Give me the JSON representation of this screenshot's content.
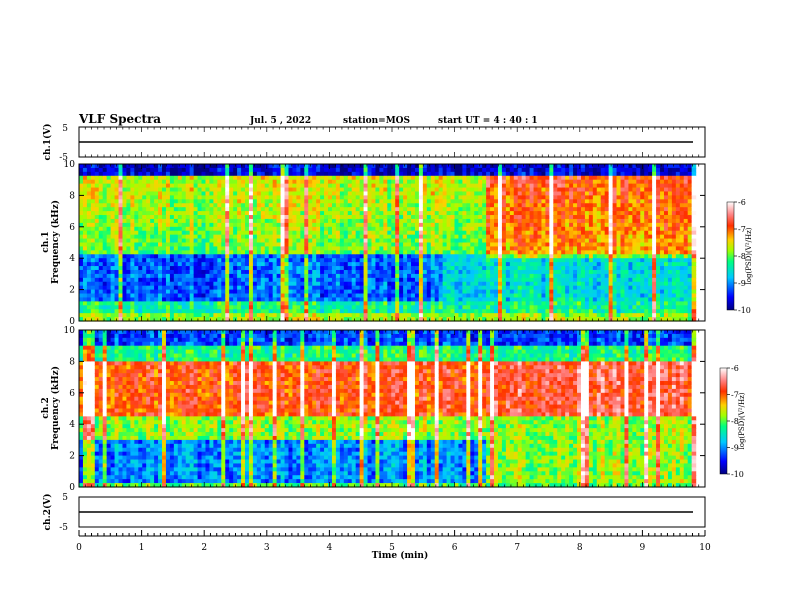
{
  "header": {
    "title": "VLF Spectra",
    "date": "Jul. 5 , 2022",
    "station": "station=MOS",
    "start_ut": "start UT = 4 : 40 : 1"
  },
  "chart_data": [
    {
      "type": "line",
      "name": "ch1-waveform",
      "ylabel": "ch.1(V)",
      "ylim": [
        -5,
        5
      ],
      "yticks": [
        "5",
        "-5"
      ],
      "xlim": [
        0,
        10
      ],
      "value_approx": 0
    },
    {
      "type": "heatmap",
      "name": "ch1-spectrogram",
      "ylabel": "ch.1\nFrequency (kHz)",
      "ylabel_top": "ch.1",
      "ylabel_bottom": "Frequency (kHz)",
      "xlim": [
        0,
        10
      ],
      "ylim": [
        0,
        10
      ],
      "yticks": [
        "0",
        "2",
        "4",
        "6",
        "8",
        "10"
      ],
      "data_end_min": 9.85,
      "colorbar": {
        "label": "log(PSD)(V²/Hz)",
        "range": [
          -10,
          -6
        ],
        "ticks": [
          "-6",
          "-7",
          "-8",
          "-9",
          "-10"
        ]
      }
    },
    {
      "type": "heatmap",
      "name": "ch2-spectrogram",
      "ylabel": "ch.2\nFrequency (kHz)",
      "ylabel_top": "ch.2",
      "ylabel_bottom": "Frequency (kHz)",
      "xlim": [
        0,
        10
      ],
      "ylim": [
        0,
        10
      ],
      "yticks": [
        "0",
        "2",
        "4",
        "6",
        "8",
        "10"
      ],
      "data_end_min": 9.85,
      "colorbar": {
        "label": "log(PSD)(V²/Hz)",
        "range": [
          -10,
          -6
        ],
        "ticks": [
          "-6",
          "-7",
          "-8",
          "-9",
          "-10"
        ]
      }
    },
    {
      "type": "line",
      "name": "ch2-waveform",
      "ylabel": "ch.2(V)",
      "ylim": [
        -5,
        5
      ],
      "yticks": [
        "5",
        "-5"
      ],
      "xlim": [
        0,
        10
      ],
      "value_approx": 0
    }
  ],
  "xaxis": {
    "label": "Time (min)",
    "ticks": [
      "0",
      "1",
      "2",
      "3",
      "4",
      "5",
      "6",
      "7",
      "8",
      "9",
      "10"
    ]
  },
  "colors": {
    "colormap": [
      "#00007f",
      "#0000ff",
      "#00c8ff",
      "#00ff80",
      "#a0ff00",
      "#ffd000",
      "#ff3000",
      "#ffffff"
    ],
    "trace": "#000000"
  }
}
